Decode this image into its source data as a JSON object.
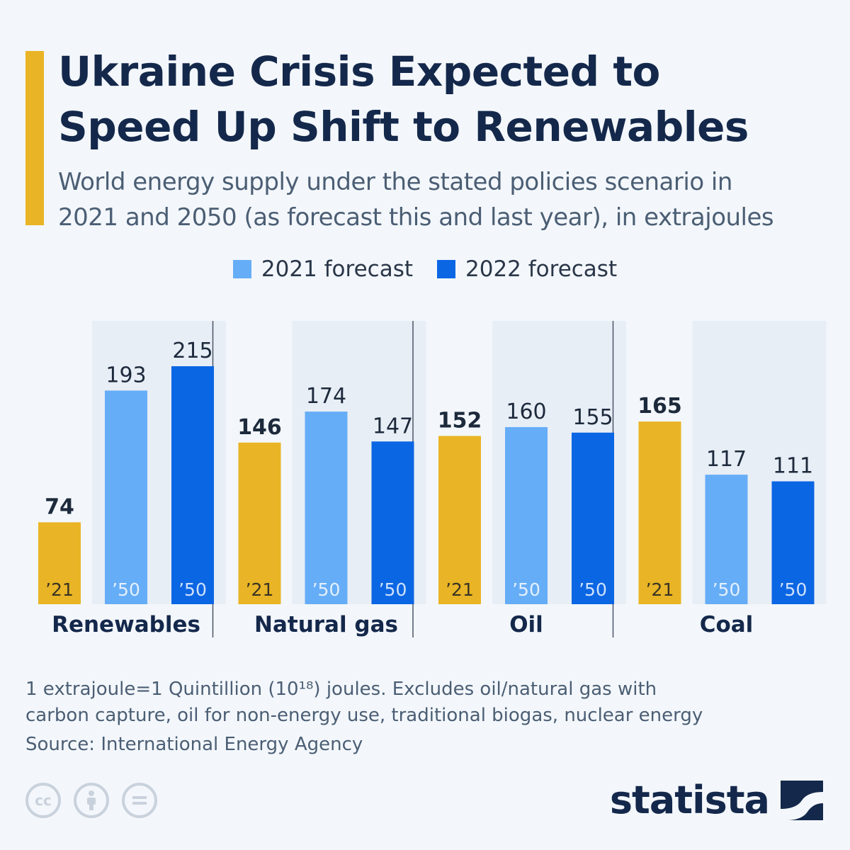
{
  "header": {
    "title": "Ukraine Crisis Expected to\nSpeed Up Shift to Renewables",
    "subtitle": "World energy supply under the stated policies scenario in\n2021 and 2050 (as forecast this and last year), in extrajoules"
  },
  "legend": [
    {
      "label": "2021 forecast",
      "color": "#66adf7"
    },
    {
      "label": "2022 forecast",
      "color": "#0b66e4"
    }
  ],
  "chart_data": {
    "type": "bar",
    "categories": [
      "Renewables",
      "Natural gas",
      "Oil",
      "Coal"
    ],
    "bar_labels": [
      "’21",
      "’50",
      "’50"
    ],
    "series": [
      {
        "values": [
          74,
          146,
          152,
          165
        ],
        "color": "#e9b425"
      },
      {
        "name": "2021 forecast",
        "values": [
          193,
          174,
          160,
          117
        ],
        "color": "#66adf7"
      },
      {
        "name": "2022 forecast",
        "values": [
          215,
          147,
          155,
          111
        ],
        "color": "#0b66e4"
      }
    ],
    "ylim": [
      0,
      230
    ],
    "grid": false
  },
  "footer": {
    "note": "1 extrajoule=1 Quintillion (10¹⁸) joules. Excludes oil/natural gas with\ncarbon capture, oil for non-energy use, traditional biogas, nuclear energy",
    "source": "Source: International Energy Agency",
    "brand": "statista"
  }
}
